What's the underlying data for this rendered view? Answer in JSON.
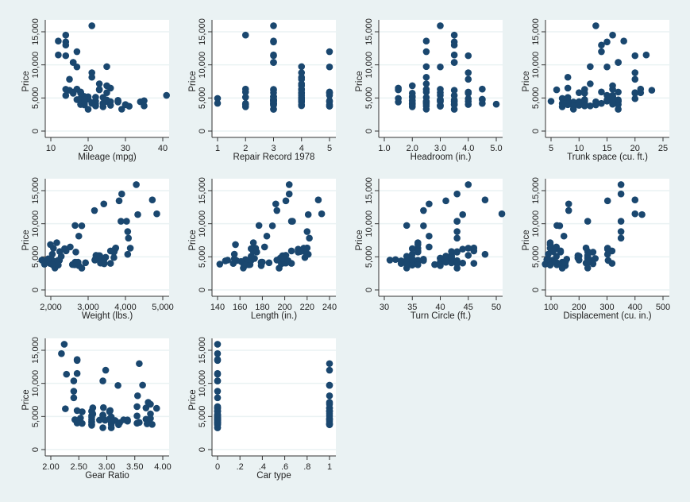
{
  "chart_data": {
    "type": "scatter",
    "ylabel": "Price",
    "yticks": [
      {
        "value": 0,
        "label": "0"
      },
      {
        "value": 5000,
        "label": "5,000"
      },
      {
        "value": 10000,
        "label": "10,000"
      },
      {
        "value": 15000,
        "label": "15,000"
      }
    ],
    "marker_color": "#1a476f",
    "price": [
      4099,
      4749,
      3799,
      4816,
      7827,
      5788,
      4453,
      5189,
      10372,
      4082,
      11385,
      14500,
      15906,
      3299,
      5705,
      4504,
      5104,
      3667,
      3955,
      3984,
      4010,
      5886,
      6342,
      4389,
      4187,
      11497,
      13594,
      13466,
      3829,
      5379,
      6165,
      4516,
      6303,
      3291,
      8814,
      5172,
      4733,
      4890,
      4181,
      4195,
      10371,
      4647,
      4425,
      4482,
      6486,
      4060,
      5798,
      4934,
      5222,
      4723,
      4424,
      4172,
      9690,
      6295,
      9735,
      6229,
      4589,
      5079,
      8129,
      4296,
      5799,
      4499,
      3995,
      12990,
      3895,
      3798,
      5899,
      3748,
      5719,
      7140,
      5397,
      4697,
      6850,
      11995
    ],
    "panels": [
      {
        "xlabel": "Mileage (mpg)",
        "ticks": [
          {
            "value": 10,
            "label": "10"
          },
          {
            "value": 20,
            "label": "20"
          },
          {
            "value": 30,
            "label": "30"
          },
          {
            "value": 40,
            "label": "40"
          }
        ],
        "x": [
          22,
          17,
          22,
          20,
          15,
          18,
          26,
          20,
          16,
          19,
          14,
          14,
          21,
          29,
          16,
          22,
          22,
          24,
          19,
          30,
          18,
          16,
          17,
          28,
          21,
          12,
          12,
          14,
          22,
          14,
          15,
          18,
          14,
          20,
          21,
          19,
          19,
          18,
          19,
          24,
          16,
          28,
          34,
          25,
          26,
          18,
          18,
          18,
          19,
          19,
          19,
          24,
          17,
          23,
          25,
          23,
          35,
          24,
          21,
          21,
          25,
          28,
          30,
          14,
          26,
          35,
          18,
          31,
          18,
          23,
          41,
          25,
          25,
          17
        ]
      },
      {
        "xlabel": "Repair Record 1978",
        "ticks": [
          {
            "value": 1,
            "label": "1"
          },
          {
            "value": 2,
            "label": "2"
          },
          {
            "value": 3,
            "label": "3"
          },
          {
            "value": 4,
            "label": "4"
          },
          {
            "value": 5,
            "label": "5"
          }
        ],
        "x": [
          3,
          3,
          null,
          3,
          4,
          3,
          null,
          3,
          3,
          3,
          3,
          2,
          3,
          3,
          4,
          3,
          2,
          2,
          3,
          5,
          2,
          2,
          2,
          4,
          3,
          3,
          3,
          3,
          4,
          4,
          3,
          3,
          4,
          3,
          4,
          3,
          3,
          4,
          3,
          1,
          3,
          3,
          5,
          3,
          null,
          2,
          4,
          1,
          3,
          3,
          null,
          2,
          5,
          3,
          4,
          4,
          5,
          4,
          4,
          3,
          5,
          4,
          4,
          null,
          3,
          5,
          5,
          5,
          5,
          4,
          5,
          4,
          4,
          5
        ]
      },
      {
        "xlabel": "Headroom (in.)",
        "ticks": [
          {
            "value": 1,
            "label": "1.0"
          },
          {
            "value": 2,
            "label": "2.0"
          },
          {
            "value": 3,
            "label": "3.0"
          },
          {
            "value": 4,
            "label": "4.0"
          },
          {
            "value": 5,
            "label": "5.0"
          }
        ],
        "x": [
          2.5,
          3,
          3,
          4.5,
          4,
          4,
          3,
          2,
          3.5,
          3.5,
          4,
          3.5,
          3,
          2.5,
          4,
          3.5,
          2,
          2,
          3.5,
          2,
          4,
          4,
          4.5,
          1.5,
          2,
          3.5,
          2.5,
          3.5,
          3,
          3.5,
          3.5,
          3,
          3,
          3.5,
          4,
          2,
          4.5,
          4,
          4.5,
          2,
          3.5,
          2,
          2.5,
          4,
          1.5,
          5,
          4,
          1.5,
          2,
          3.5,
          3.5,
          2,
          3,
          2.5,
          2.5,
          1.5,
          2,
          2.5,
          2.5,
          2.5,
          3,
          2.5,
          3.5,
          3.5,
          3,
          2.5,
          2.5,
          3,
          2,
          2.5,
          3,
          3,
          2,
          2.5
        ]
      },
      {
        "xlabel": "Trunk space (cu. ft.)",
        "ticks": [
          {
            "value": 5,
            "label": "5"
          },
          {
            "value": 10,
            "label": "10"
          },
          {
            "value": 15,
            "label": "15"
          },
          {
            "value": 20,
            "label": "20"
          },
          {
            "value": 25,
            "label": "25"
          }
        ],
        "x": [
          11,
          11,
          12,
          16,
          20,
          21,
          10,
          16,
          17,
          13,
          20,
          16,
          13,
          9,
          20,
          17,
          16,
          7,
          13,
          8,
          17,
          17,
          21,
          9,
          10,
          22,
          18,
          15,
          9,
          16,
          23,
          15,
          16,
          17,
          20,
          16,
          16,
          20,
          14,
          10,
          17,
          11,
          11,
          17,
          8,
          16,
          20,
          7,
          16,
          17,
          13,
          7,
          15,
          11,
          12,
          6,
          8,
          8,
          8,
          16,
          10,
          5,
          11,
          14,
          10,
          11,
          14,
          9,
          11,
          12,
          15,
          15,
          16,
          14
        ]
      },
      {
        "xlabel": "Weight (lbs.)",
        "ticks": [
          {
            "value": 2000,
            "label": "2,000"
          },
          {
            "value": 3000,
            "label": "3,000"
          },
          {
            "value": 4000,
            "label": "4,000"
          },
          {
            "value": 5000,
            "label": "5,000"
          }
        ],
        "x": [
          2930,
          3350,
          2640,
          3250,
          4080,
          3670,
          2230,
          3280,
          3880,
          3400,
          4330,
          3900,
          4290,
          2110,
          3690,
          3180,
          3220,
          2750,
          3430,
          2120,
          3600,
          3600,
          3740,
          1800,
          2650,
          4840,
          4720,
          3830,
          2580,
          4060,
          3720,
          3370,
          4130,
          2830,
          4060,
          3310,
          3300,
          3690,
          3370,
          2730,
          4030,
          3260,
          1800,
          2200,
          2520,
          3330,
          3700,
          3470,
          3210,
          3200,
          3420,
          2690,
          2830,
          2070,
          2650,
          2370,
          2020,
          2280,
          2750,
          2130,
          2240,
          1760,
          1980,
          3420,
          1830,
          2050,
          2410,
          2200,
          2670,
          2160,
          2040,
          1930,
          1990,
          3170
        ]
      },
      {
        "xlabel": "Length (in.)",
        "ticks": [
          {
            "value": 140,
            "label": "140"
          },
          {
            "value": 160,
            "label": "160"
          },
          {
            "value": 180,
            "label": "180"
          },
          {
            "value": 200,
            "label": "200"
          },
          {
            "value": 220,
            "label": "220"
          },
          {
            "value": 240,
            "label": "240"
          }
        ],
        "x": [
          186,
          173,
          168,
          196,
          222,
          218,
          170,
          200,
          207,
          200,
          221,
          204,
          204,
          163,
          212,
          193,
          200,
          179,
          197,
          163,
          206,
          206,
          220,
          147,
          179,
          233,
          230,
          201,
          169,
          221,
          212,
          198,
          217,
          195,
          220,
          198,
          198,
          218,
          200,
          180,
          206,
          170,
          157,
          165,
          182,
          201,
          214,
          198,
          201,
          199,
          203,
          179,
          189,
          174,
          177,
          170,
          165,
          170,
          184,
          161,
          172,
          149,
          154,
          192,
          142,
          164,
          174,
          165,
          175,
          172,
          155,
          155,
          156,
          193
        ]
      },
      {
        "xlabel": "Turn Circle (ft.)",
        "ticks": [
          {
            "value": 30,
            "label": "30"
          },
          {
            "value": 35,
            "label": "35"
          },
          {
            "value": 40,
            "label": "40"
          },
          {
            "value": 45,
            "label": "45"
          },
          {
            "value": 50,
            "label": "50"
          }
        ],
        "x": [
          40,
          40,
          35,
          40,
          43,
          43,
          34,
          42,
          43,
          42,
          44,
          43,
          45,
          34,
          43,
          31,
          41,
          40,
          43,
          35,
          46,
          46,
          46,
          33,
          43,
          51,
          48,
          41,
          39,
          48,
          44,
          41,
          45,
          43,
          43,
          42,
          42,
          42,
          43,
          40,
          43,
          37,
          37,
          36,
          38,
          44,
          42,
          42,
          45,
          40,
          43,
          41,
          37,
          36,
          34,
          35,
          32,
          34,
          38,
          36,
          36,
          34,
          33,
          38,
          34,
          36,
          36,
          35,
          36,
          36,
          35,
          35,
          36,
          37
        ]
      },
      {
        "xlabel": "Displacement (cu. in.)",
        "ticks": [
          {
            "value": 100,
            "label": "100"
          },
          {
            "value": 200,
            "label": "200"
          },
          {
            "value": 300,
            "label": "300"
          },
          {
            "value": 400,
            "label": "400"
          },
          {
            "value": 500,
            "label": "500"
          }
        ],
        "x": [
          121,
          258,
          121,
          196,
          350,
          231,
          304,
          196,
          231,
          231,
          425,
          350,
          350,
          231,
          250,
          200,
          200,
          151,
          250,
          98,
          318,
          318,
          225,
          98,
          140,
          400,
          400,
          302,
          140,
          302,
          302,
          250,
          302,
          140,
          350,
          231,
          231,
          231,
          231,
          151,
          350,
          156,
          86,
          105,
          119,
          225,
          231,
          231,
          231,
          231,
          231,
          151,
          131,
          97,
          121,
          119,
          85,
          119,
          146,
          105,
          107,
          91,
          86,
          163,
          79,
          97,
          134,
          97,
          134,
          97,
          90,
          89,
          97,
          163
        ]
      },
      {
        "xlabel": "Gear Ratio",
        "ticks": [
          {
            "value": 2,
            "label": "2.00"
          },
          {
            "value": 2.5,
            "label": "2.50"
          },
          {
            "value": 3,
            "label": "3.00"
          },
          {
            "value": 3.5,
            "label": "3.50"
          },
          {
            "value": 4,
            "label": "4.00"
          }
        ],
        "x": [
          3.58,
          2.53,
          3.08,
          2.93,
          2.41,
          2.73,
          2.87,
          2.93,
          2.93,
          3.08,
          2.28,
          2.19,
          2.24,
          2.93,
          2.56,
          2.73,
          2.73,
          2.73,
          2.56,
          3.54,
          2.47,
          2.47,
          2.94,
          3.15,
          3.08,
          2.47,
          2.47,
          2.47,
          2.73,
          2.75,
          2.26,
          2.43,
          2.75,
          3.08,
          2.41,
          2.93,
          2.93,
          2.73,
          3.08,
          2.73,
          2.41,
          3.05,
          2.97,
          3.37,
          3.54,
          3.23,
          2.73,
          3.08,
          2.93,
          2.93,
          3.08,
          2.73,
          3.2,
          3.7,
          3.64,
          3.89,
          3.7,
          3.54,
          3.55,
          3.37,
          3.05,
          3.3,
          3.73,
          3.58,
          3.72,
          3.81,
          3.06,
          3.21,
          3.05,
          3.74,
          3.78,
          3.78,
          3.78,
          2.98
        ]
      },
      {
        "xlabel": "Car type",
        "ticks": [
          {
            "value": 0,
            "label": "0"
          },
          {
            "value": 0.2,
            "label": ".2"
          },
          {
            "value": 0.4,
            "label": ".4"
          },
          {
            "value": 0.6,
            "label": ".6"
          },
          {
            "value": 0.8,
            "label": ".8"
          },
          {
            "value": 1,
            "label": "1"
          }
        ],
        "x": [
          0,
          0,
          0,
          0,
          0,
          0,
          0,
          0,
          0,
          0,
          0,
          0,
          0,
          0,
          0,
          0,
          0,
          0,
          0,
          0,
          0,
          0,
          0,
          0,
          0,
          0,
          0,
          0,
          0,
          0,
          0,
          0,
          0,
          0,
          0,
          0,
          0,
          0,
          0,
          0,
          0,
          0,
          0,
          0,
          0,
          0,
          0,
          0,
          0,
          0,
          0,
          0,
          1,
          1,
          1,
          1,
          1,
          1,
          1,
          1,
          1,
          1,
          1,
          1,
          1,
          1,
          1,
          1,
          1,
          1,
          1,
          1,
          1,
          1
        ]
      }
    ]
  }
}
